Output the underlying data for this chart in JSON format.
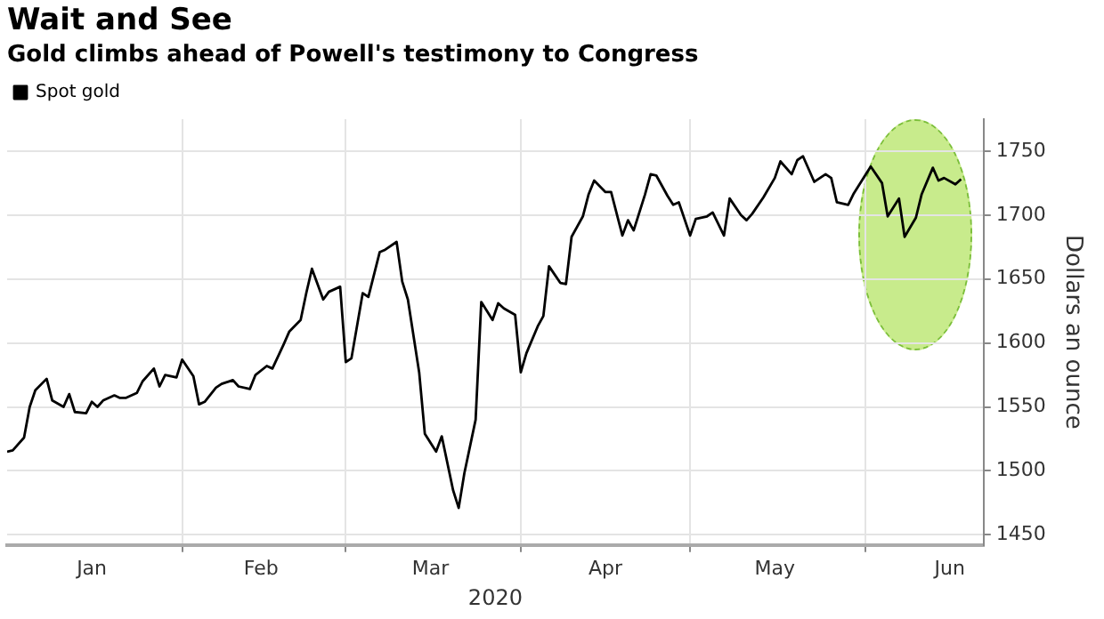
{
  "chart_data": {
    "type": "line",
    "title": "Wait and See",
    "subtitle": "Gold climbs ahead of Powell's testimony to Congress",
    "xlabel": "2020",
    "ylabel": "Dollars an ounce",
    "x": [
      "2020-01-01",
      "2020-01-02",
      "2020-01-04",
      "2020-01-05",
      "2020-01-06",
      "2020-01-08",
      "2020-01-09",
      "2020-01-11",
      "2020-01-12",
      "2020-01-13",
      "2020-01-15",
      "2020-01-16",
      "2020-01-17",
      "2020-01-18",
      "2020-01-20",
      "2020-01-21",
      "2020-01-22",
      "2020-01-24",
      "2020-01-25",
      "2020-01-27",
      "2020-01-28",
      "2020-01-29",
      "2020-01-31",
      "2020-02-01",
      "2020-02-03",
      "2020-02-04",
      "2020-02-05",
      "2020-02-07",
      "2020-02-08",
      "2020-02-10",
      "2020-02-11",
      "2020-02-13",
      "2020-02-14",
      "2020-02-16",
      "2020-02-17",
      "2020-02-19",
      "2020-02-20",
      "2020-02-22",
      "2020-02-23",
      "2020-02-24",
      "2020-02-26",
      "2020-02-27",
      "2020-02-29",
      "2020-03-01",
      "2020-03-02",
      "2020-03-04",
      "2020-03-05",
      "2020-03-07",
      "2020-03-08",
      "2020-03-10",
      "2020-03-11",
      "2020-03-12",
      "2020-03-14",
      "2020-03-15",
      "2020-03-17",
      "2020-03-18",
      "2020-03-20",
      "2020-03-21",
      "2020-03-22",
      "2020-03-24",
      "2020-03-25",
      "2020-03-27",
      "2020-03-28",
      "2020-03-29",
      "2020-03-31",
      "2020-04-01",
      "2020-04-02",
      "2020-04-04",
      "2020-04-05",
      "2020-04-06",
      "2020-04-08",
      "2020-04-09",
      "2020-04-10",
      "2020-04-12",
      "2020-04-13",
      "2020-04-14",
      "2020-04-16",
      "2020-04-17",
      "2020-04-19",
      "2020-04-20",
      "2020-04-21",
      "2020-04-23",
      "2020-04-24",
      "2020-04-25",
      "2020-04-27",
      "2020-04-28",
      "2020-04-29",
      "2020-05-01",
      "2020-05-02",
      "2020-05-04",
      "2020-05-05",
      "2020-05-07",
      "2020-05-08",
      "2020-05-10",
      "2020-05-11",
      "2020-05-12",
      "2020-05-14",
      "2020-05-16",
      "2020-05-17",
      "2020-05-19",
      "2020-05-20",
      "2020-05-21",
      "2020-05-23",
      "2020-05-25",
      "2020-05-26",
      "2020-05-27",
      "2020-05-29",
      "2020-05-30",
      "2020-06-01",
      "2020-06-02",
      "2020-06-04",
      "2020-06-05",
      "2020-06-07",
      "2020-06-08",
      "2020-06-10",
      "2020-06-11",
      "2020-06-13",
      "2020-06-14",
      "2020-06-15",
      "2020-06-17",
      "2020-06-18"
    ],
    "series": [
      {
        "name": "Spot gold",
        "color": "#000000",
        "values": [
          1515,
          1516,
          1526,
          1550,
          1563,
          1572,
          1555,
          1550,
          1560,
          1546,
          1545,
          1554,
          1550,
          1555,
          1559,
          1557,
          1557,
          1561,
          1570,
          1580,
          1566,
          1575,
          1573,
          1587,
          1574,
          1552,
          1554,
          1565,
          1568,
          1571,
          1566,
          1564,
          1575,
          1582,
          1580,
          1599,
          1609,
          1618,
          1639,
          1658,
          1634,
          1640,
          1644,
          1585,
          1588,
          1639,
          1636,
          1671,
          1673,
          1679,
          1648,
          1634,
          1577,
          1529,
          1515,
          1527,
          1485,
          1471,
          1498,
          1540,
          1632,
          1618,
          1631,
          1627,
          1622,
          1577,
          1592,
          1613,
          1621,
          1660,
          1647,
          1646,
          1683,
          1699,
          1716,
          1727,
          1718,
          1718,
          1684,
          1696,
          1688,
          1716,
          1732,
          1731,
          1715,
          1708,
          1710,
          1684,
          1697,
          1699,
          1702,
          1684,
          1713,
          1700,
          1696,
          1701,
          1714,
          1729,
          1742,
          1732,
          1743,
          1746,
          1726,
          1732,
          1729,
          1710,
          1708,
          1717,
          1731,
          1738,
          1725,
          1699,
          1713,
          1683,
          1698,
          1716,
          1737,
          1727,
          1729,
          1724,
          1728
        ]
      }
    ],
    "xlim": [
      "2020-01-01",
      "2020-06-22"
    ],
    "xticks": [
      {
        "value": "2020-01-16",
        "label": "Jan"
      },
      {
        "value": "2020-02-01",
        "label": null
      },
      {
        "value": "2020-02-15",
        "label": "Feb"
      },
      {
        "value": "2020-03-01",
        "label": null
      },
      {
        "value": "2020-03-16",
        "label": "Mar"
      },
      {
        "value": "2020-04-01",
        "label": null
      },
      {
        "value": "2020-04-16",
        "label": "Apr"
      },
      {
        "value": "2020-05-01",
        "label": null
      },
      {
        "value": "2020-05-16",
        "label": "May"
      },
      {
        "value": "2020-06-01",
        "label": null
      },
      {
        "value": "2020-06-16",
        "label": "Jun"
      }
    ],
    "ylim": [
      1442,
      1775
    ],
    "yticks": [
      1450,
      1500,
      1550,
      1600,
      1650,
      1700,
      1750
    ],
    "grid": true,
    "legend": "top left",
    "marker": "none",
    "line_style": "solid"
  }
}
